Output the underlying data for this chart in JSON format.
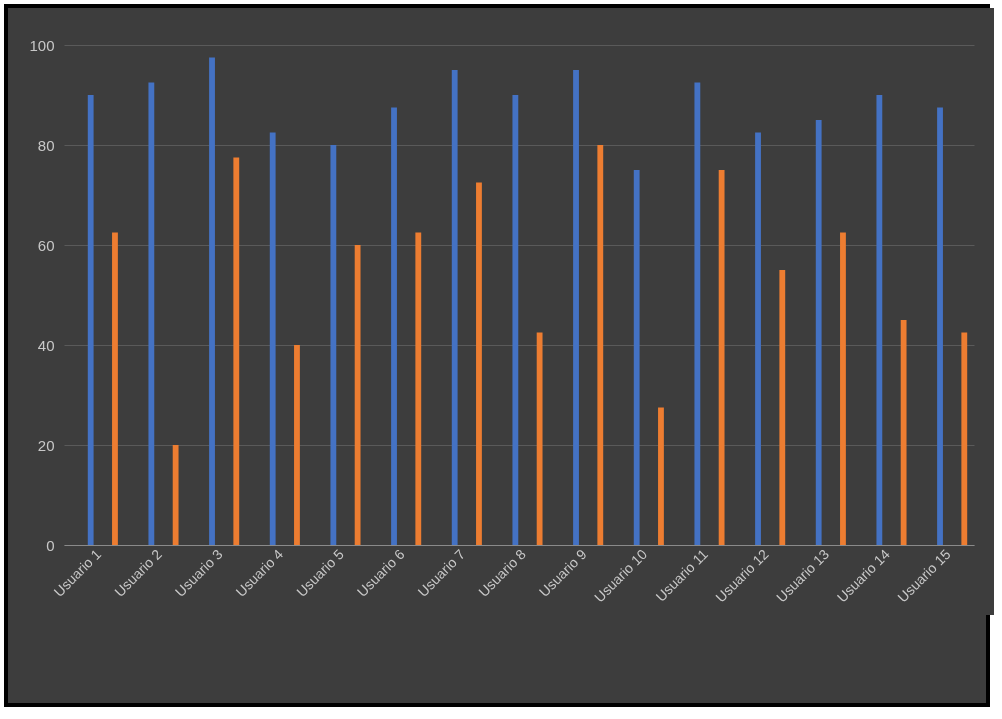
{
  "chart_data": {
    "type": "bar",
    "categories": [
      "Usuario 1",
      "Usuario 2",
      "Usuario 3",
      "Usuario 4",
      "Usuario 5",
      "Usuario 6",
      "Usuario 7",
      "Usuario 8",
      "Usuario 9",
      "Usuario 10",
      "Usuario 11",
      "Usuario 12",
      "Usuario 13",
      "Usuario 14",
      "Usuario 15"
    ],
    "series": [
      {
        "color": "#4472c4",
        "values": [
          90,
          92.5,
          97.5,
          82.5,
          80,
          87.5,
          95,
          90,
          95,
          75,
          92.5,
          82.5,
          85,
          90,
          87.5
        ]
      },
      {
        "color": "#ed7d31",
        "values": [
          62.5,
          20,
          77.5,
          40,
          60,
          62.5,
          72.5,
          42.5,
          80,
          27.5,
          75,
          55,
          62.5,
          45,
          42.5
        ]
      }
    ],
    "ylim": [
      0,
      100
    ],
    "yticks": [
      0,
      20,
      40,
      60,
      80,
      100
    ],
    "grid": "y"
  }
}
